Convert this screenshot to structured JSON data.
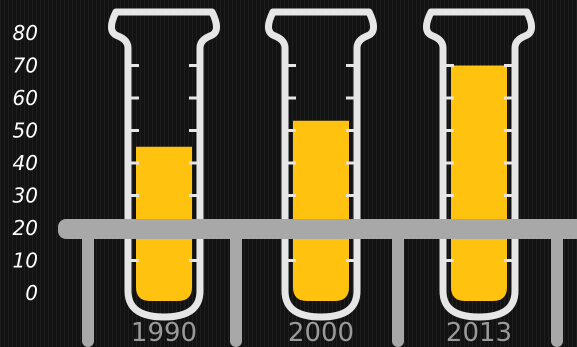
{
  "chart_data": {
    "type": "bar",
    "title": "",
    "xlabel": "",
    "ylabel": "",
    "categories": [
      "1990",
      "2000",
      "2013"
    ],
    "values": [
      45,
      53,
      70
    ],
    "ylim": [
      0,
      80
    ],
    "yticks": [
      "0",
      "10",
      "20",
      "30",
      "40",
      "50",
      "60",
      "70",
      "80"
    ],
    "grid": false,
    "legend": "none",
    "colors": {
      "fill": "#ffc20e",
      "tube": "#e6e6e6",
      "rack": "#a8a8a8",
      "tick_text": "#ffffff",
      "category_text": "#9a9a9a",
      "background": "#161616"
    }
  }
}
